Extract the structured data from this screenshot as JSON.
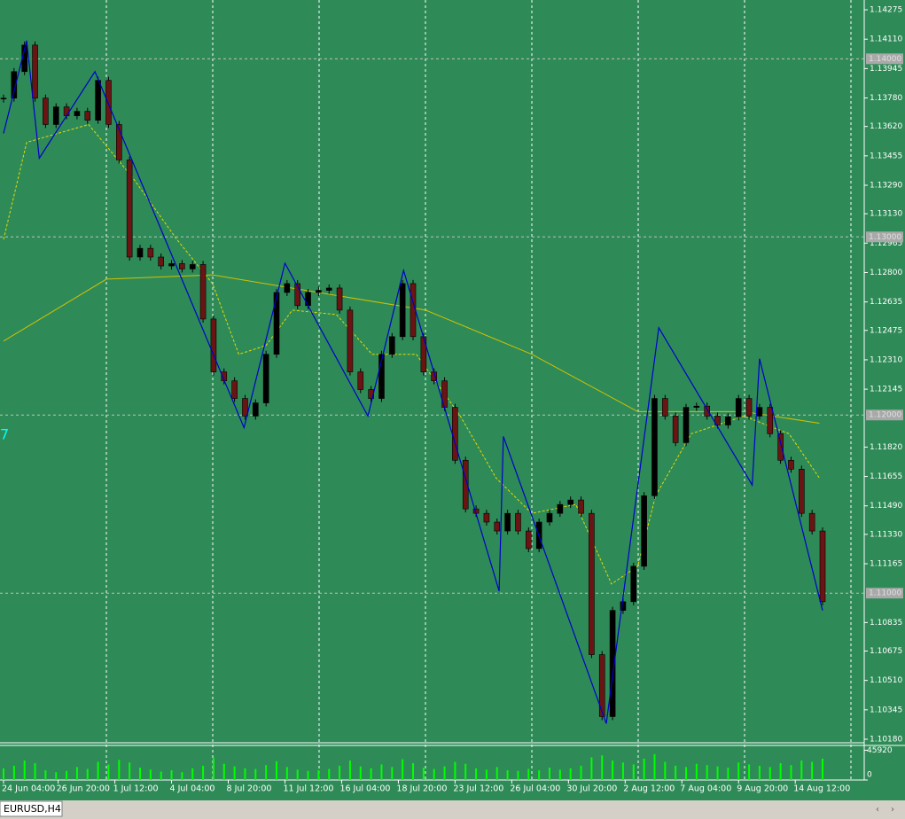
{
  "chart_data": {
    "type": "candlestick",
    "symbol_tab": "EURUSD,H4",
    "annotation": "7",
    "up_color": "#000000",
    "down_color": "#6b1414",
    "close": [
      1.13779,
      1.13928,
      1.14077,
      1.13779,
      1.13631,
      1.1373,
      1.1368,
      1.13705,
      1.13655,
      1.13879,
      1.13631,
      1.13432,
      1.12887,
      1.12936,
      1.12887,
      1.12837,
      1.1285,
      1.1282,
      1.12845,
      1.12539,
      1.12242,
      1.12192,
      1.12093,
      1.11994,
      1.12068,
      1.12341,
      1.12688,
      1.12738,
      1.12614,
      1.12688,
      1.127,
      1.12713,
      1.12589,
      1.12242,
      1.12143,
      1.12093,
      1.12341,
      1.1244,
      1.12738,
      1.1244,
      1.12242,
      1.12192,
      1.12043,
      1.11746,
      1.11473,
      1.11448,
      1.11399,
      1.11349,
      1.11448,
      1.11349,
      1.1125,
      1.11399,
      1.11448,
      1.11498,
      1.11523,
      1.11448,
      1.10655,
      1.10307,
      1.10903,
      1.10952,
      1.11151,
      1.11547,
      1.12093,
      1.11994,
      1.11845,
      1.12043,
      1.1205,
      1.11994,
      1.11944,
      1.1199,
      1.12093,
      1.11994,
      1.12043,
      1.11895,
      1.11746,
      1.11696,
      1.11448,
      1.11349,
      1.10952
    ],
    "volume": [
      18000,
      22000,
      30000,
      26000,
      15000,
      12000,
      14000,
      20000,
      17000,
      28000,
      24000,
      31000,
      27000,
      19000,
      16000,
      13000,
      15000,
      12000,
      18000,
      22000,
      34000,
      25000,
      21000,
      18000,
      17000,
      23000,
      29000,
      20000,
      16000,
      14000,
      15000,
      17000,
      22000,
      30000,
      21000,
      18000,
      24000,
      20000,
      32000,
      26000,
      19000,
      17000,
      21000,
      28000,
      25000,
      18000,
      16000,
      20000,
      15000,
      14000,
      17000,
      15000,
      19000,
      16000,
      18000,
      22000,
      35000,
      38000,
      30000,
      27000,
      24000,
      33000,
      40000,
      28000,
      22000,
      20000,
      25000,
      23000,
      21000,
      19000,
      27000,
      24000,
      22000,
      20000,
      26000,
      23000,
      30000,
      28000,
      33000
    ],
    "volume_color": "#00ff00",
    "vlim": [
      0,
      52000
    ],
    "vticks": [
      45920,
      0
    ],
    "zigzag": {
      "color": "#0000cc",
      "x": [
        0,
        2.2,
        3.4,
        8.7,
        22.9,
        26.8,
        34.7,
        38.1,
        47.2,
        47.6,
        57.4,
        62.4,
        71.3,
        72,
        78
      ],
      "values": [
        1.13581,
        1.14102,
        1.13442,
        1.13928,
        1.11929,
        1.12852,
        1.11994,
        1.12812,
        1.11012,
        1.1188,
        1.10268,
        1.1249,
        1.11607,
        1.12316,
        1.10903
      ]
    },
    "ma_slow": {
      "color": "#d4c000",
      "x": [
        0,
        9.8,
        19.9,
        30,
        40.2,
        50.3,
        60.4,
        70.5,
        77.7
      ],
      "values": [
        1.12415,
        1.12763,
        1.12787,
        1.12688,
        1.12589,
        1.12341,
        1.12019,
        1.12019,
        1.11954
      ]
    },
    "ma_fast": {
      "color": "#e8d800",
      "x": [
        0,
        2.2,
        8.1,
        12.3,
        16.5,
        19.9,
        22.4,
        25,
        27.5,
        31.7,
        35.1,
        39.3,
        43.5,
        46.9,
        50.3,
        54.5,
        57.9,
        60.4,
        62.1,
        65.5,
        70.5,
        74.8,
        77.7
      ],
      "values": [
        1.12986,
        1.13531,
        1.13631,
        1.13333,
        1.12986,
        1.12738,
        1.12341,
        1.12391,
        1.12589,
        1.12564,
        1.12341,
        1.12341,
        1.11994,
        1.11647,
        1.11448,
        1.11498,
        1.11051,
        1.11151,
        1.11547,
        1.11895,
        1.11994,
        1.11895,
        1.11647
      ]
    },
    "ylim": [
      1.1016,
      1.1433
    ],
    "yticks": [
      1.14275,
      1.1411,
      1.13945,
      1.1378,
      1.1362,
      1.13455,
      1.1329,
      1.1313,
      1.12965,
      1.128,
      1.12635,
      1.12475,
      1.1231,
      1.12145,
      1.1182,
      1.11655,
      1.1149,
      1.1133,
      1.11165,
      1.10835,
      1.10675,
      1.1051,
      1.10345,
      1.1018
    ],
    "ytick_labels": [
      "1.14275",
      "1.14110",
      "1.13945",
      "1.13780",
      "1.13620",
      "1.13455",
      "1.13290",
      "1.13130",
      "1.12965",
      "1.12800",
      "1.12635",
      "1.12475",
      "1.12310",
      "1.12145",
      "1.11820",
      "1.11655",
      "1.11490",
      "1.11330",
      "1.11165",
      "1.10835",
      "1.10675",
      "1.10510",
      "1.10345",
      "1.10180"
    ],
    "levels": [
      {
        "value": 1.14,
        "label": "1.14000"
      },
      {
        "value": 1.13,
        "label": "1.13000"
      },
      {
        "value": 1.12,
        "label": "1.12000"
      },
      {
        "value": 1.11,
        "label": "1.11000"
      }
    ],
    "x_labels": [
      {
        "value": 0,
        "label": "24 Jun 04:00"
      },
      {
        "value": 5.2,
        "label": "26 Jun 20:00"
      },
      {
        "value": 10.6,
        "label": "1 Jul 12:00"
      },
      {
        "value": 16,
        "label": "4 Jul 04:00"
      },
      {
        "value": 21.4,
        "label": "8 Jul 20:00"
      },
      {
        "value": 26.8,
        "label": "11 Jul 12:00"
      },
      {
        "value": 32.2,
        "label": "16 Jul 04:00"
      },
      {
        "value": 37.6,
        "label": "18 Jul 20:00"
      },
      {
        "value": 43,
        "label": "23 Jul 12:00"
      },
      {
        "value": 48.4,
        "label": "26 Jul 04:00"
      },
      {
        "value": 53.8,
        "label": "30 Jul 20:00"
      },
      {
        "value": 59.2,
        "label": "2 Aug 12:00"
      },
      {
        "value": 64.6,
        "label": "7 Aug 04:00"
      },
      {
        "value": 70,
        "label": "9 Aug 20:00"
      },
      {
        "value": 75.4,
        "label": "14 Aug 12:00"
      }
    ]
  }
}
